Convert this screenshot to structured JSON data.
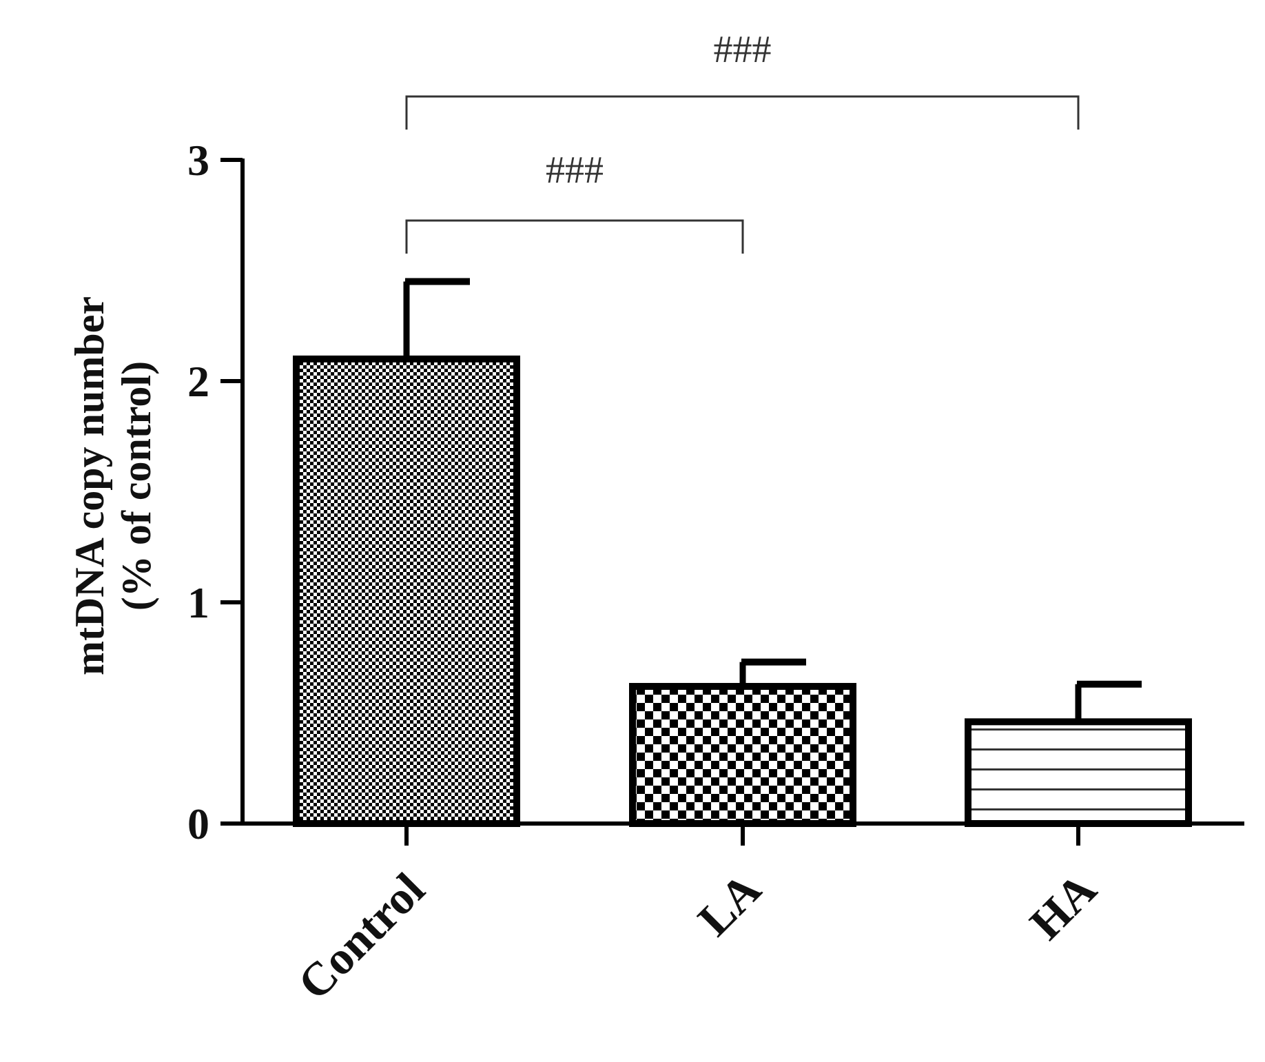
{
  "chart_data": {
    "type": "bar",
    "categories": [
      "Control",
      "LA",
      "HA"
    ],
    "values": [
      2.1,
      0.62,
      0.46
    ],
    "errors": [
      0.35,
      0.11,
      0.17
    ],
    "ylabel": {
      "line1": "mtDNA copy number",
      "line2": "(% of control)"
    },
    "ylim": [
      0,
      3
    ],
    "yticks": [
      0,
      1,
      2,
      3
    ],
    "fill_patterns": [
      "fine-checker",
      "coarse-checker",
      "horizontal-lines"
    ],
    "comparisons": [
      {
        "from": "Control",
        "to": "LA",
        "label": "###"
      },
      {
        "from": "Control",
        "to": "HA",
        "label": "###"
      }
    ],
    "grid": false,
    "colors": {
      "bar_edge": "#000000",
      "bar_pattern": "#000000",
      "bracket": "#333333"
    }
  }
}
